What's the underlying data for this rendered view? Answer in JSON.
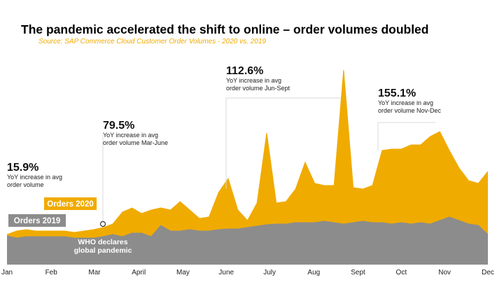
{
  "chart_data": {
    "type": "area",
    "title": "The pandemic accelerated the shift to online – order volumes doubled",
    "subtitle": "Source: SAP Commerce Cloud Customer Order Volumes - 2020 vs. 2019",
    "x": [
      0,
      1,
      2,
      3,
      4,
      5,
      6,
      7,
      8,
      9,
      10,
      11,
      12,
      13,
      14,
      15,
      16,
      17,
      18,
      19,
      20,
      21,
      22,
      23,
      24,
      25,
      26,
      27,
      28,
      29,
      30,
      31,
      32,
      33,
      34,
      35,
      36,
      37,
      38,
      39,
      40,
      41,
      42,
      43,
      44,
      45,
      46,
      47,
      48,
      49,
      50
    ],
    "xlim": [
      0,
      50
    ],
    "xticks": [
      {
        "value": 0,
        "label": "Jan"
      },
      {
        "value": 4.6,
        "label": "Feb"
      },
      {
        "value": 9.1,
        "label": "Mar"
      },
      {
        "value": 13.7,
        "label": "April"
      },
      {
        "value": 18.3,
        "label": "May"
      },
      {
        "value": 22.8,
        "label": "June"
      },
      {
        "value": 27.3,
        "label": "July"
      },
      {
        "value": 31.9,
        "label": "Aug"
      },
      {
        "value": 36.5,
        "label": "Sept"
      },
      {
        "value": 41,
        "label": "Oct"
      },
      {
        "value": 45.5,
        "label": "Nov"
      },
      {
        "value": 50,
        "label": "Dec"
      }
    ],
    "ylim": [
      0,
      290
    ],
    "series": [
      {
        "name": "Orders 2020",
        "color": "#f0ab00",
        "values": [
          43,
          48,
          50,
          48,
          48,
          48,
          48,
          46,
          48,
          50,
          53,
          58,
          75,
          81,
          73,
          78,
          81,
          78,
          90,
          78,
          66,
          68,
          103,
          123,
          78,
          63,
          88,
          188,
          88,
          90,
          108,
          146,
          116,
          113,
          113,
          278,
          110,
          108,
          113,
          163,
          165,
          165,
          171,
          171,
          183,
          190,
          163,
          138,
          120,
          116,
          133
        ]
      },
      {
        "name": "Orders 2019",
        "color": "#8c8c8c",
        "values": [
          41,
          38,
          40,
          40,
          40,
          40,
          40,
          38,
          38,
          38,
          40,
          43,
          40,
          45,
          45,
          40,
          56,
          48,
          48,
          50,
          48,
          48,
          50,
          51,
          51,
          53,
          55,
          57,
          58,
          58,
          60,
          60,
          60,
          62,
          60,
          58,
          60,
          62,
          60,
          60,
          58,
          60,
          58,
          60,
          58,
          63,
          68,
          63,
          58,
          56,
          43
        ]
      }
    ],
    "annotations": [
      {
        "value": "15.9%",
        "lines": [
          "YoY increase in avg",
          "order volume"
        ]
      },
      {
        "value": "79.5%",
        "lines": [
          "YoY increase in avg",
          "order volume Mar-June"
        ]
      },
      {
        "value": "112.6%",
        "lines": [
          "YoY increase in avg",
          "order volume Jun-Sept"
        ]
      },
      {
        "value": "155.1%",
        "lines": [
          "YoY increase in avg",
          "order volume Nov-Dec"
        ]
      },
      {
        "lines": [
          "WHO declares",
          "global pandemic"
        ]
      }
    ]
  }
}
